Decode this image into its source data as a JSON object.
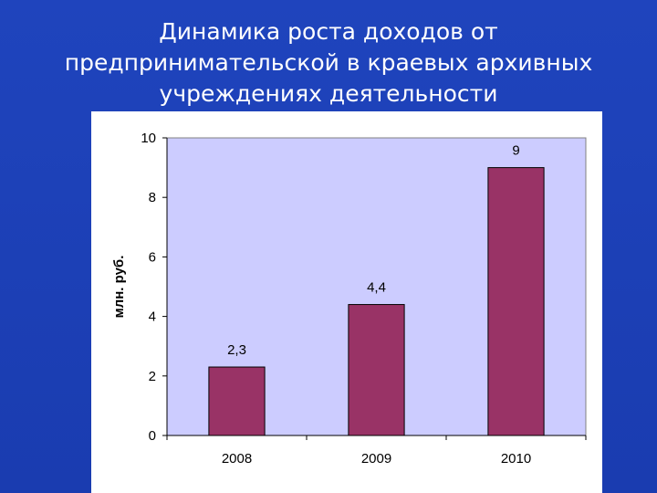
{
  "slide": {
    "title_lines": [
      "Динамика роста доходов от",
      "предпринимательской в краевых архивных",
      "учреждениях деятельности"
    ]
  },
  "colors": {
    "slide_background": "#1f44bd",
    "title_text": "#ffffff",
    "plot_area": "#ccccff",
    "bar_fill": "#993366",
    "frame": "#ffffff"
  },
  "chart_data": {
    "type": "bar",
    "categories": [
      "2008",
      "2009",
      "2010"
    ],
    "values": [
      2.3,
      4.4,
      9
    ],
    "value_labels": [
      "2,3",
      "4,4",
      "9"
    ],
    "ylabel": "млн. руб.",
    "xlabel": "",
    "ylim": [
      0,
      10
    ],
    "yticks": [
      0,
      2,
      4,
      6,
      8,
      10
    ],
    "grid": false,
    "legend": "none"
  }
}
